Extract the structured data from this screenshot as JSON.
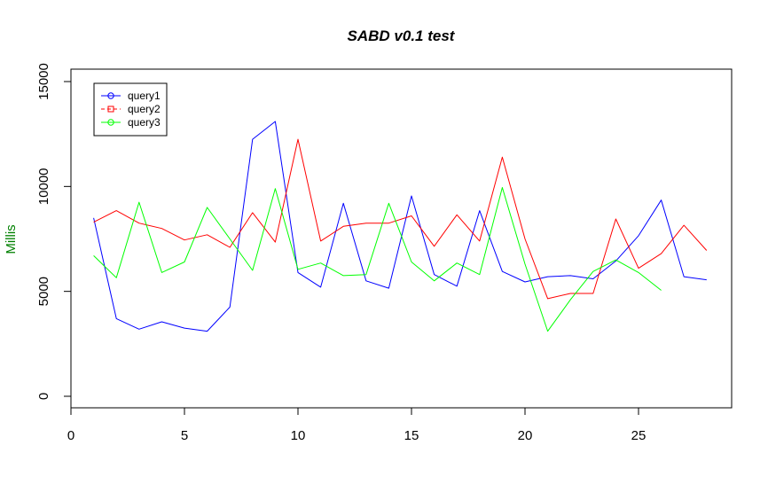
{
  "chart_data": {
    "type": "line",
    "title": "SABD v0.1 test",
    "xlabel": "",
    "ylabel": "Millis",
    "ylabel_color": "#008000",
    "xlim": [
      0,
      29
    ],
    "ylim": [
      0,
      15000
    ],
    "xticks": [
      0,
      5,
      10,
      15,
      20,
      25
    ],
    "yticks": [
      0,
      5000,
      10000,
      15000
    ],
    "grid": false,
    "legend_position": "top-left",
    "series": [
      {
        "name": "query1",
        "color": "#0000ff",
        "dash": "solid",
        "marker": "circle",
        "x": [
          1,
          2,
          3,
          4,
          5,
          6,
          7,
          8,
          9,
          10,
          11,
          12,
          13,
          14,
          15,
          16,
          17,
          18,
          19,
          20,
          21,
          22,
          23,
          24,
          25,
          26,
          27,
          28
        ],
        "values": [
          8500,
          3700,
          3200,
          3550,
          3250,
          3100,
          4250,
          12250,
          13100,
          5900,
          5200,
          9200,
          5500,
          5150,
          9550,
          5800,
          5250,
          8850,
          5950,
          5450,
          5700,
          5750,
          5600,
          6450,
          7650,
          9350,
          5700,
          5550
        ]
      },
      {
        "name": "query2",
        "color": "#ff0000",
        "dash": "dashed",
        "marker": "square",
        "x": [
          1,
          2,
          3,
          4,
          5,
          6,
          7,
          8,
          9,
          10,
          11,
          12,
          13,
          14,
          15,
          16,
          17,
          18,
          19,
          20,
          21,
          22,
          23,
          24,
          25,
          26,
          27,
          28
        ],
        "values": [
          8300,
          8850,
          8250,
          8000,
          7450,
          7700,
          7100,
          8750,
          7350,
          12250,
          7400,
          8100,
          8250,
          8250,
          8600,
          7150,
          8650,
          7400,
          11400,
          7500,
          4650,
          4900,
          4900,
          8450,
          6100,
          6800,
          8150,
          6950
        ]
      },
      {
        "name": "query3",
        "color": "#00ff00",
        "dash": "solid",
        "marker": "circle",
        "x": [
          1,
          2,
          3,
          4,
          5,
          6,
          7,
          8,
          9,
          10,
          11,
          12,
          13,
          14,
          15,
          16,
          17,
          18,
          19,
          20,
          21,
          22,
          23,
          24,
          25,
          26
        ],
        "values": [
          6700,
          5650,
          9250,
          5900,
          6400,
          9000,
          7500,
          6000,
          9900,
          6050,
          6350,
          5750,
          5800,
          9200,
          6400,
          5500,
          6350,
          5800,
          9950,
          6300,
          3100,
          4600,
          5950,
          6500,
          5900,
          5050
        ]
      }
    ]
  }
}
